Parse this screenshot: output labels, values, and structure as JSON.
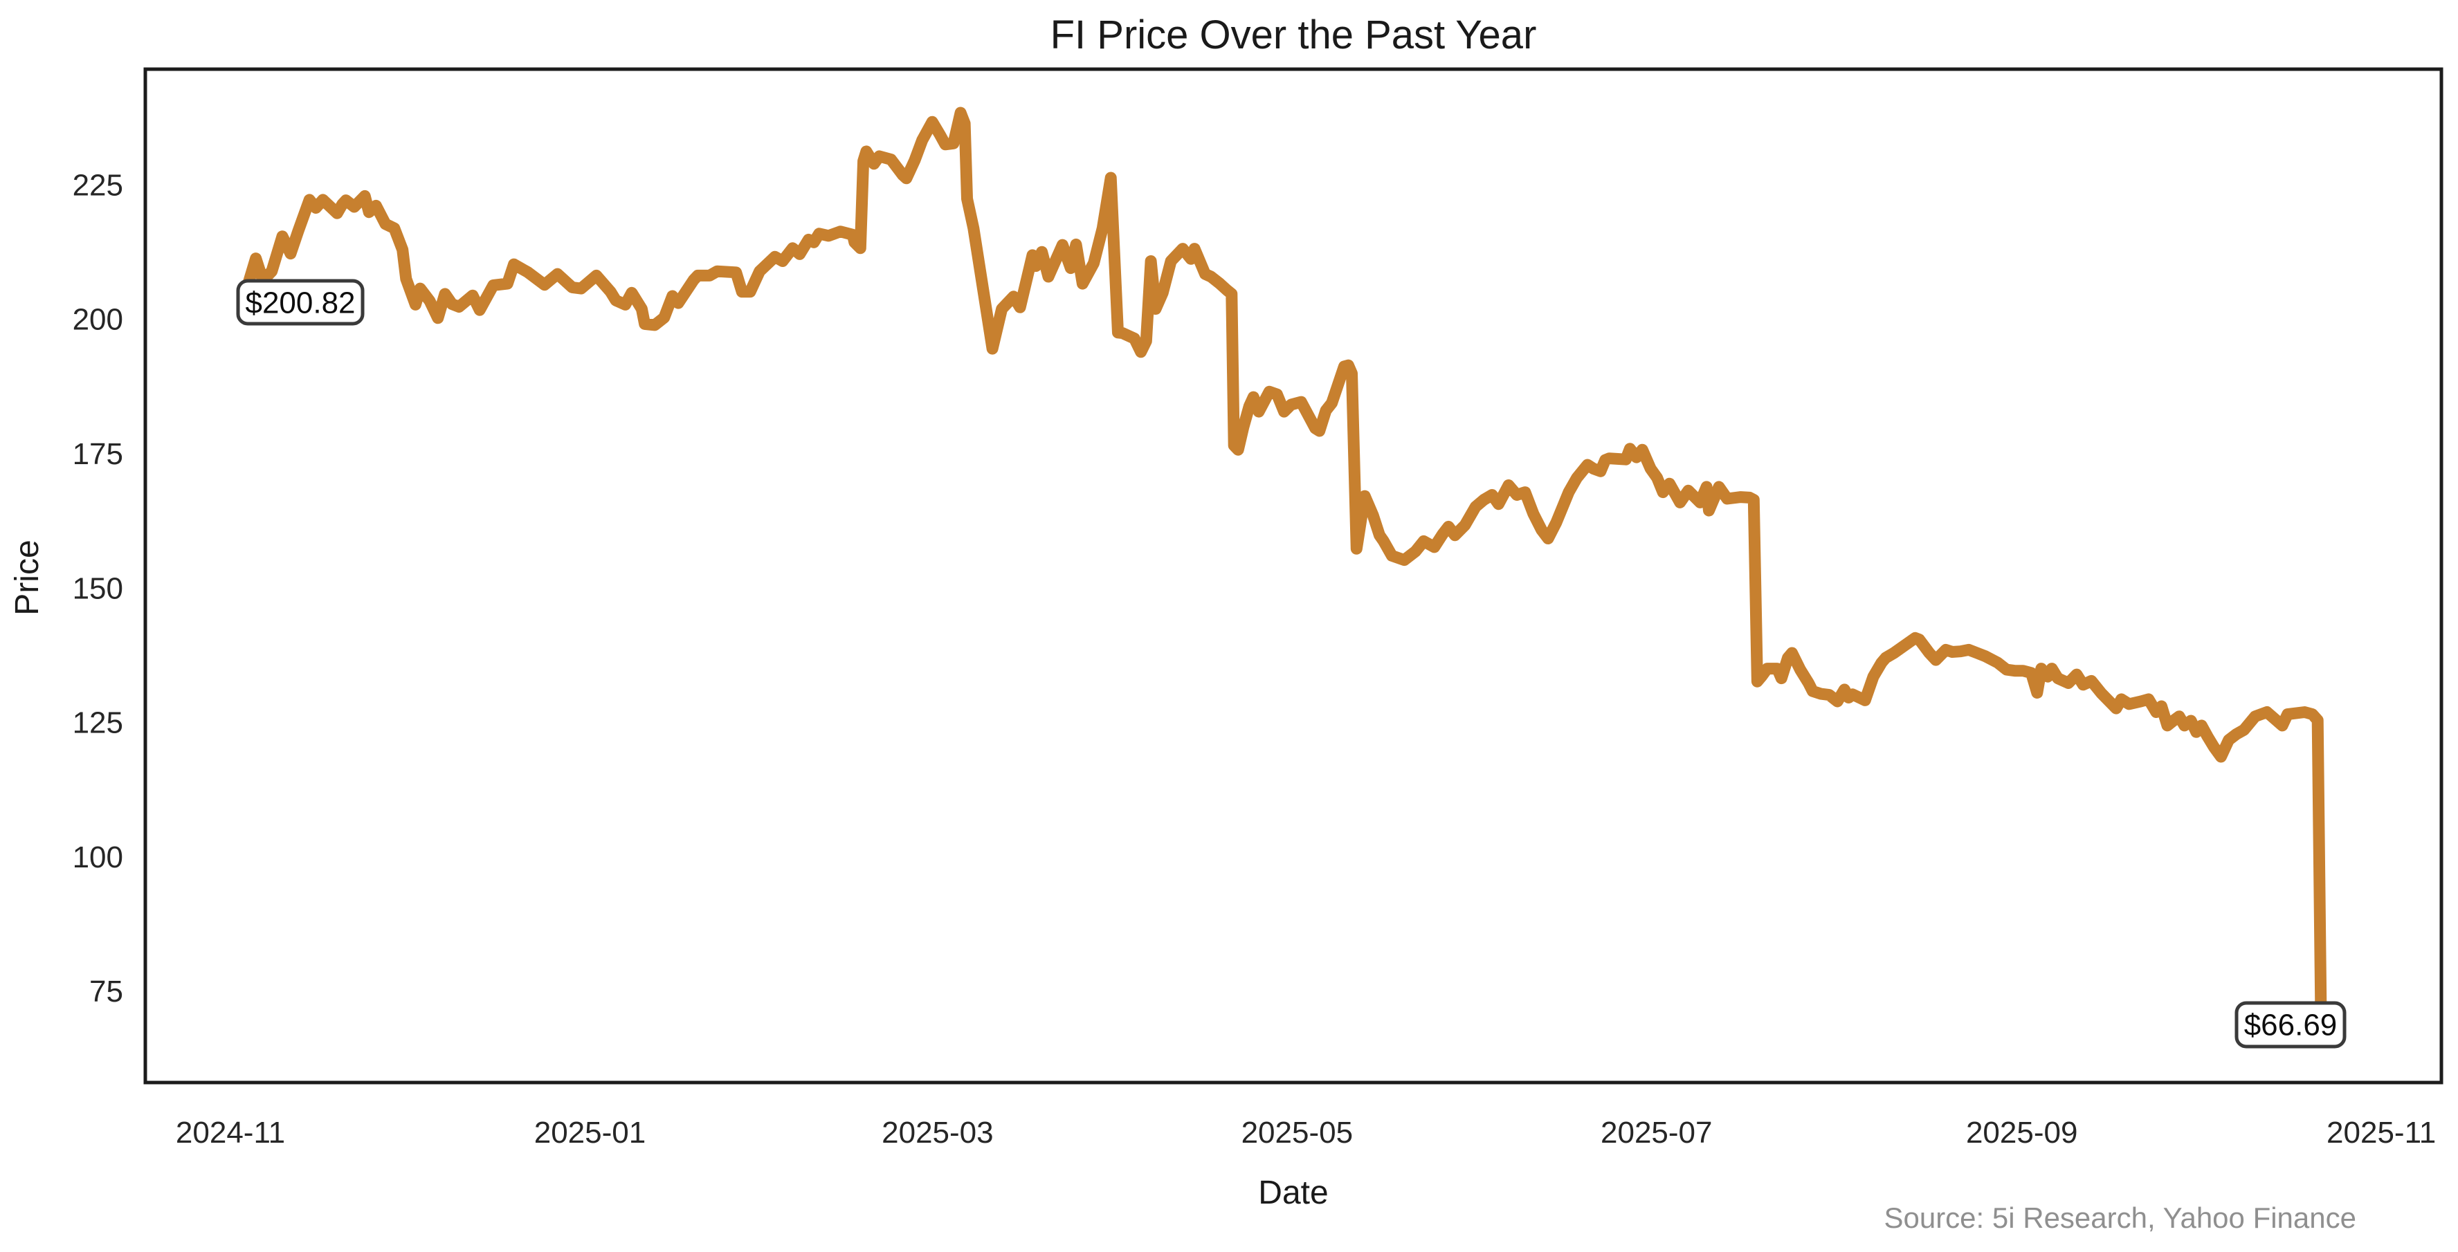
{
  "title": "FI Price Over the Past Year",
  "axes": {
    "x_label": "Date",
    "y_label": "Price"
  },
  "annotations": {
    "start": "$200.82",
    "end": "$66.69"
  },
  "source_note": "Source: 5i Research, Yahoo Finance",
  "colors": {
    "line": "#C7802F",
    "spine": "#1c1c1c",
    "text": "#1a1a1a",
    "tick_text": "#262626",
    "muted": "#8f8f8f",
    "annotation_border": "#3a3a3a",
    "annotation_fill": "#ffffff"
  },
  "chart_data": {
    "type": "line",
    "title": "FI Price Over the Past Year",
    "xlabel": "Date",
    "ylabel": "Price",
    "x_unit": "days since 2024-11-01",
    "xlim": [
      -14.45,
      375.2
    ],
    "ylim": [
      58.1,
      246.6
    ],
    "grid": false,
    "legend": "none",
    "x_ticks": [
      {
        "day": 0,
        "label": "2024-11"
      },
      {
        "day": 61,
        "label": "2025-01"
      },
      {
        "day": 120,
        "label": "2025-03"
      },
      {
        "day": 181,
        "label": "2025-05"
      },
      {
        "day": 242,
        "label": "2025-07"
      },
      {
        "day": 304,
        "label": "2025-09"
      },
      {
        "day": 365,
        "label": "2025-11"
      }
    ],
    "y_ticks": [
      75,
      100,
      125,
      150,
      175,
      200,
      225
    ],
    "start_price": 200.82,
    "end_price": 66.69,
    "series": [
      {
        "name": "FI",
        "points": [
          [
            2.2,
            200.82
          ],
          [
            3.1,
            207.0
          ],
          [
            4.3,
            211.4
          ],
          [
            5.5,
            207.3
          ],
          [
            7.0,
            209.0
          ],
          [
            8.8,
            215.5
          ],
          [
            10.2,
            212.3
          ],
          [
            11.5,
            216.5
          ],
          [
            13.4,
            222.3
          ],
          [
            14.5,
            220.8
          ],
          [
            15.7,
            222.3
          ],
          [
            18.1,
            219.8
          ],
          [
            19.0,
            221.5
          ],
          [
            19.6,
            222.2
          ],
          [
            21.0,
            221.0
          ],
          [
            22.8,
            223.0
          ],
          [
            23.5,
            220.0
          ],
          [
            24.7,
            221.2
          ],
          [
            26.3,
            217.8
          ],
          [
            27.8,
            217.0
          ],
          [
            29.2,
            213.0
          ],
          [
            29.8,
            207.6
          ],
          [
            31.4,
            202.8
          ],
          [
            32.2,
            205.8
          ],
          [
            33.8,
            203.5
          ],
          [
            35.2,
            200.3
          ],
          [
            36.4,
            204.8
          ],
          [
            37.6,
            202.9
          ],
          [
            38.8,
            202.4
          ],
          [
            41.1,
            204.5
          ],
          [
            42.3,
            201.8
          ],
          [
            44.6,
            206.4
          ],
          [
            47.0,
            206.7
          ],
          [
            48.1,
            210.3
          ],
          [
            50.5,
            208.8
          ],
          [
            53.3,
            206.5
          ],
          [
            55.5,
            208.5
          ],
          [
            58.0,
            206.0
          ],
          [
            59.5,
            205.8
          ],
          [
            62.1,
            208.2
          ],
          [
            64.5,
            205.2
          ],
          [
            65.4,
            203.6
          ],
          [
            67.0,
            202.8
          ],
          [
            68.1,
            205.0
          ],
          [
            69.8,
            202.0
          ],
          [
            70.3,
            199.2
          ],
          [
            72.0,
            199.0
          ],
          [
            73.6,
            200.4
          ],
          [
            75.0,
            204.4
          ],
          [
            76.0,
            203.1
          ],
          [
            78.6,
            207.4
          ],
          [
            79.3,
            208.2
          ],
          [
            81.3,
            208.2
          ],
          [
            82.6,
            209.0
          ],
          [
            85.8,
            208.8
          ],
          [
            86.8,
            205.2
          ],
          [
            88.2,
            205.2
          ],
          [
            89.8,
            209.0
          ],
          [
            92.4,
            211.7
          ],
          [
            93.7,
            210.9
          ],
          [
            95.4,
            213.3
          ],
          [
            96.6,
            212.2
          ],
          [
            98.1,
            214.9
          ],
          [
            99.0,
            214.4
          ],
          [
            99.9,
            216.0
          ],
          [
            101.5,
            215.6
          ],
          [
            103.5,
            216.4
          ],
          [
            105.6,
            215.8
          ],
          [
            105.9,
            214.4
          ],
          [
            106.9,
            213.3
          ],
          [
            107.4,
            229.5
          ],
          [
            107.9,
            231.3
          ],
          [
            109.2,
            229.0
          ],
          [
            110.1,
            230.4
          ],
          [
            112.1,
            229.8
          ],
          [
            114.1,
            226.9
          ],
          [
            114.7,
            226.3
          ],
          [
            116.1,
            229.6
          ],
          [
            117.4,
            233.4
          ],
          [
            119.1,
            236.8
          ],
          [
            120.4,
            234.4
          ],
          [
            121.3,
            232.6
          ],
          [
            122.7,
            232.8
          ],
          [
            123.9,
            238.5
          ],
          [
            124.6,
            236.5
          ],
          [
            125.0,
            222.5
          ],
          [
            126.1,
            217.0
          ],
          [
            129.3,
            194.6
          ],
          [
            130.9,
            202.0
          ],
          [
            132.9,
            204.3
          ],
          [
            134.0,
            202.3
          ],
          [
            136.1,
            212.0
          ],
          [
            136.7,
            210.0
          ],
          [
            137.7,
            212.6
          ],
          [
            138.8,
            208.0
          ],
          [
            141.2,
            213.9
          ],
          [
            142.6,
            209.6
          ],
          [
            143.5,
            214.0
          ],
          [
            144.6,
            206.7
          ],
          [
            146.5,
            210.5
          ],
          [
            148.0,
            217.0
          ],
          [
            149.4,
            226.4
          ],
          [
            150.6,
            197.6
          ],
          [
            151.4,
            197.5
          ],
          [
            153.4,
            196.5
          ],
          [
            154.5,
            194.0
          ],
          [
            155.4,
            196.0
          ],
          [
            156.2,
            210.9
          ],
          [
            157.0,
            202.0
          ],
          [
            158.2,
            205.0
          ],
          [
            159.6,
            210.9
          ],
          [
            161.6,
            213.2
          ],
          [
            163.0,
            211.3
          ],
          [
            163.6,
            213.2
          ],
          [
            165.4,
            208.5
          ],
          [
            166.4,
            208.0
          ],
          [
            167.9,
            206.7
          ],
          [
            169.1,
            205.5
          ],
          [
            169.9,
            204.8
          ],
          [
            170.3,
            176.6
          ],
          [
            171.0,
            175.8
          ],
          [
            171.9,
            180.0
          ],
          [
            172.9,
            183.9
          ],
          [
            173.6,
            185.6
          ],
          [
            174.5,
            182.9
          ],
          [
            176.3,
            186.6
          ],
          [
            177.6,
            186.1
          ],
          [
            178.8,
            182.9
          ],
          [
            180.0,
            184.2
          ],
          [
            181.7,
            184.7
          ],
          [
            184.1,
            179.8
          ],
          [
            184.8,
            179.3
          ],
          [
            185.9,
            183.1
          ],
          [
            186.9,
            184.5
          ],
          [
            189.0,
            191.3
          ],
          [
            189.7,
            191.5
          ],
          [
            190.3,
            190.0
          ],
          [
            191.1,
            157.4
          ],
          [
            192.5,
            167.2
          ],
          [
            193.9,
            163.6
          ],
          [
            195.0,
            159.9
          ],
          [
            195.7,
            158.8
          ],
          [
            197.1,
            156.1
          ],
          [
            199.2,
            155.3
          ],
          [
            201.1,
            156.9
          ],
          [
            202.5,
            158.8
          ],
          [
            204.3,
            157.7
          ],
          [
            205.7,
            160.1
          ],
          [
            206.7,
            161.5
          ],
          [
            207.8,
            159.9
          ],
          [
            209.5,
            161.8
          ],
          [
            211.3,
            165.2
          ],
          [
            212.7,
            166.5
          ],
          [
            214.1,
            167.4
          ],
          [
            215.2,
            165.7
          ],
          [
            216.9,
            169.2
          ],
          [
            218.3,
            167.4
          ],
          [
            219.7,
            167.9
          ],
          [
            221.1,
            163.9
          ],
          [
            222.5,
            160.9
          ],
          [
            223.6,
            159.3
          ],
          [
            225.0,
            162.3
          ],
          [
            227.1,
            167.9
          ],
          [
            228.5,
            170.6
          ],
          [
            230.3,
            173.0
          ],
          [
            231.3,
            172.3
          ],
          [
            232.5,
            171.8
          ],
          [
            233.3,
            173.9
          ],
          [
            234.0,
            174.2
          ],
          [
            236.8,
            174.0
          ],
          [
            237.5,
            176.0
          ],
          [
            238.6,
            174.4
          ],
          [
            239.6,
            175.8
          ],
          [
            241.0,
            172.3
          ],
          [
            242.1,
            170.6
          ],
          [
            243.1,
            167.9
          ],
          [
            244.2,
            169.5
          ],
          [
            246.0,
            166.0
          ],
          [
            247.4,
            168.2
          ],
          [
            249.4,
            166.0
          ],
          [
            250.5,
            168.9
          ],
          [
            250.9,
            164.5
          ],
          [
            252.6,
            168.9
          ],
          [
            254.0,
            166.7
          ],
          [
            256.3,
            167.0
          ],
          [
            257.8,
            166.9
          ],
          [
            258.5,
            166.5
          ],
          [
            259.1,
            132.7
          ],
          [
            259.8,
            133.6
          ],
          [
            260.8,
            135.1
          ],
          [
            262.5,
            135.1
          ],
          [
            263.2,
            133.3
          ],
          [
            264.3,
            137.1
          ],
          [
            265.0,
            138.0
          ],
          [
            266.4,
            134.9
          ],
          [
            267.8,
            132.4
          ],
          [
            268.5,
            130.9
          ],
          [
            269.9,
            130.4
          ],
          [
            271.3,
            130.2
          ],
          [
            272.7,
            129.0
          ],
          [
            273.9,
            131.2
          ],
          [
            274.6,
            129.7
          ],
          [
            275.3,
            130.3
          ],
          [
            277.4,
            129.2
          ],
          [
            278.8,
            133.6
          ],
          [
            280.2,
            136.2
          ],
          [
            280.9,
            137.1
          ],
          [
            282.3,
            138.0
          ],
          [
            285.9,
            140.8
          ],
          [
            286.6,
            140.5
          ],
          [
            288.3,
            138.0
          ],
          [
            289.4,
            136.7
          ],
          [
            291.1,
            138.6
          ],
          [
            292.2,
            138.2
          ],
          [
            293.6,
            138.3
          ],
          [
            295.0,
            138.6
          ],
          [
            296.4,
            138.0
          ],
          [
            297.8,
            137.4
          ],
          [
            299.9,
            136.2
          ],
          [
            301.4,
            134.9
          ],
          [
            302.8,
            134.7
          ],
          [
            304.2,
            134.7
          ],
          [
            305.6,
            134.3
          ],
          [
            306.6,
            130.6
          ],
          [
            307.3,
            135.1
          ],
          [
            308.4,
            133.6
          ],
          [
            309.1,
            135.1
          ],
          [
            310.1,
            133.3
          ],
          [
            311.9,
            132.4
          ],
          [
            313.3,
            134.0
          ],
          [
            314.4,
            132.1
          ],
          [
            315.8,
            132.8
          ],
          [
            317.5,
            130.5
          ],
          [
            320.0,
            127.7
          ],
          [
            320.9,
            129.4
          ],
          [
            322.2,
            128.5
          ],
          [
            324.2,
            129.0
          ],
          [
            325.5,
            129.4
          ],
          [
            326.8,
            127.0
          ],
          [
            327.7,
            128.1
          ],
          [
            328.7,
            124.5
          ],
          [
            329.7,
            125.4
          ],
          [
            330.7,
            126.2
          ],
          [
            331.6,
            124.5
          ],
          [
            332.7,
            125.4
          ],
          [
            333.6,
            123.3
          ],
          [
            334.5,
            124.5
          ],
          [
            335.5,
            122.5
          ],
          [
            336.6,
            120.5
          ],
          [
            337.8,
            118.7
          ],
          [
            339.1,
            121.8
          ],
          [
            340.4,
            122.9
          ],
          [
            341.7,
            123.7
          ],
          [
            343.6,
            126.2
          ],
          [
            345.6,
            127.0
          ],
          [
            348.2,
            124.5
          ],
          [
            349.1,
            126.6
          ],
          [
            352.0,
            127.0
          ],
          [
            353.3,
            126.6
          ],
          [
            354.2,
            125.5
          ],
          [
            354.8,
            66.69
          ]
        ]
      }
    ]
  }
}
